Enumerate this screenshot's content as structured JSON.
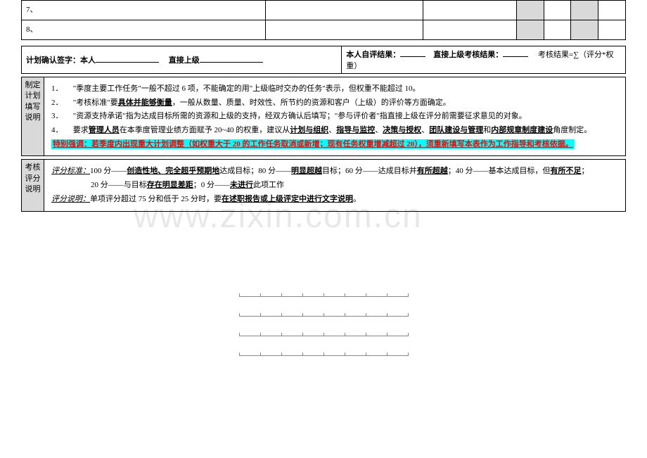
{
  "topRows": {
    "r7": "7、",
    "r8": "8、"
  },
  "signature": {
    "left_prefix": "计划确认签字：本人",
    "left_mid": "直接上级",
    "right_self": "本人自评结果：",
    "right_superior": "直接上级考核结果：",
    "right_formula": "考核结果=∑（评分*权重）",
    "blank_w1": "90px",
    "blank_w2": "90px",
    "blank_w3": "36px",
    "blank_w4": "36px"
  },
  "planBox": {
    "label_l1": "制定",
    "label_l2": "计划",
    "label_l3": "填写",
    "label_l4": "说明",
    "row1_num": "1．",
    "row1_a": "\"季度主要工作任务\"一般不超过 6 项，不能确定的用\"上级临时交办的任务\"表示，但权重不能超过 10。",
    "row2_num": "2．",
    "row2_a": "\"考核标准\"要",
    "row2_b": "具体并能够衡量",
    "row2_c": "，一般从数量、质量、时效性、所节约的资源和客户（上级）的评价等方面确定。",
    "row3_num": "3．",
    "row3_a": "\"资源支持承诺\"指为达成目标所需的资源和上级的支持，经双方确认后填写；\"参与评价者\"指直接上级在评分前需要征求意见的对象。",
    "row4_num": "4．",
    "row4_a": "要求",
    "row4_b": "管理人员",
    "row4_c": "在本季度管理业绩方面赋予 20~40 的权重，建议从",
    "row4_d": "计划与组织",
    "row4_e": "、",
    "row4_f": "指导与监控",
    "row4_g": "、",
    "row4_h": "决策与授权",
    "row4_i": "、",
    "row4_j": "团队建设与管理",
    "row4_k": "和",
    "row4_l": "内部规章制度建设",
    "row4_m": "角度制定。",
    "row5": "特别强调：若季度内出现重大计划调整（如权重大于 20 的工作任务取消或新增；现有任务权重增减超过 20），须重新填写本表作为工作指导和考核依据。"
  },
  "scoreBox": {
    "label_l1": "考核",
    "label_l2": "评分",
    "label_l3": "说明",
    "row1_a": "评分标准：",
    "row1_b": "100 分——",
    "row1_c": "创造性地、完全超乎预期地",
    "row1_d": "达成目标；80 分——",
    "row1_e": "明显超越",
    "row1_f": "目标；60 分——达成目标并",
    "row1_g": "有所超越",
    "row1_h": "；40 分——基本达成目标，但",
    "row1_i": "有所不足",
    "row1_j": "；",
    "row2_a": "20 分——与目标",
    "row2_b": "存在明显差距",
    "row2_c": "；0 分——",
    "row2_d": "未进行",
    "row2_e": "此项工作",
    "row3_a": "评分说明：",
    "row3_b": "单项评分超过 75 分和低于 25 分时，要",
    "row3_c": "在述职报告或上级评定中进行文字说明",
    "row3_d": "。"
  },
  "rulers": {
    "count": 4,
    "ticks": 9
  },
  "watermark": "www.zixin.com.cn"
}
